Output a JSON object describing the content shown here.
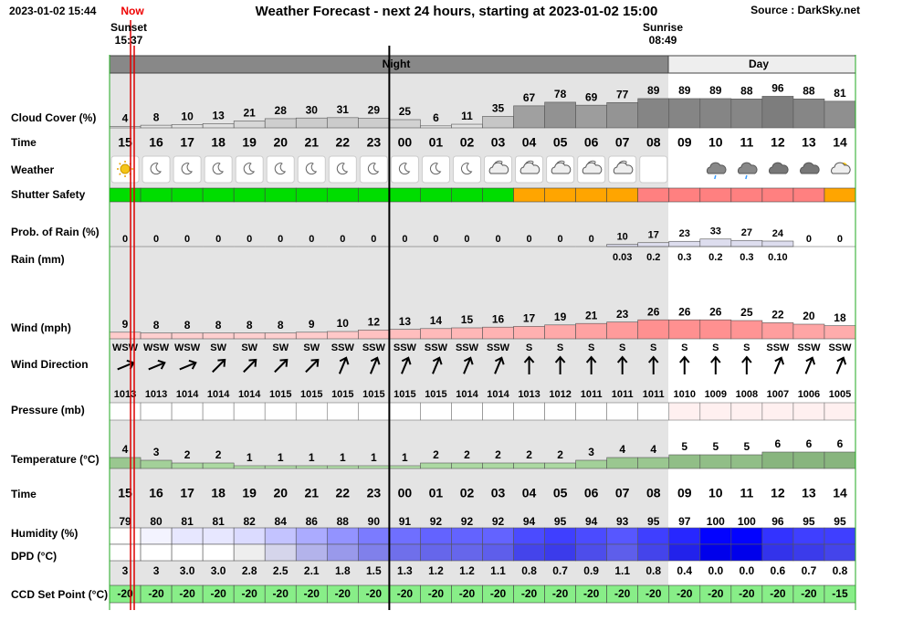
{
  "header": {
    "timestamp": "2023-01-02 15:44",
    "now": "Now",
    "title": "Weather Forecast - next 24 hours, starting at 2023-01-02 15:00",
    "source": "Source : DarkSky.net",
    "sunset_label": "Sunset",
    "sunset_time": "15:37",
    "sunrise_label": "Sunrise",
    "sunrise_time": "08:49",
    "night": "Night",
    "day": "Day"
  },
  "row_labels": {
    "cloud_cover": "Cloud Cover (%)",
    "time": "Time",
    "weather": "Weather",
    "shutter_safety": "Shutter Safety",
    "prob_rain": "Prob. of Rain (%)",
    "rain": "Rain (mm)",
    "wind": "Wind (mph)",
    "wind_direction": "Wind Direction",
    "pressure": "Pressure (mb)",
    "temperature": "Temperature (°C)",
    "time2": "Time",
    "humidity": "Humidity (%)",
    "dpd": "DPD (°C)",
    "ccd": "CCD Set Point (°C)"
  },
  "hours": [
    "15",
    "16",
    "17",
    "18",
    "19",
    "20",
    "21",
    "22",
    "23",
    "00",
    "01",
    "02",
    "03",
    "04",
    "05",
    "06",
    "07",
    "08",
    "09",
    "10",
    "11",
    "12",
    "13",
    "14"
  ],
  "cloud_cover": [
    4,
    8,
    10,
    13,
    21,
    28,
    30,
    31,
    29,
    25,
    6,
    11,
    35,
    67,
    78,
    69,
    77,
    89,
    89,
    89,
    88,
    96,
    88,
    81
  ],
  "prob_rain": [
    0,
    0,
    0,
    0,
    0,
    0,
    0,
    0,
    0,
    0,
    0,
    0,
    0,
    0,
    0,
    0,
    10,
    17,
    23,
    33,
    27,
    24,
    0,
    0
  ],
  "rain": {
    "values": [
      null,
      null,
      null,
      null,
      null,
      null,
      null,
      null,
      null,
      null,
      null,
      null,
      null,
      null,
      null,
      null,
      0.03,
      0.2,
      0.3,
      0.2,
      0.3,
      0.1,
      null,
      null
    ],
    "value_labels": [
      null,
      null,
      null,
      null,
      null,
      null,
      null,
      null,
      null,
      null,
      null,
      null,
      null,
      null,
      null,
      null,
      "0.03",
      "0.2",
      "0.3",
      "0.2",
      "0.3",
      "0.10",
      null,
      null
    ]
  },
  "wind": [
    9,
    8,
    8,
    8,
    8,
    8,
    9,
    10,
    12,
    13,
    14,
    15,
    16,
    17,
    19,
    21,
    23,
    26,
    26,
    26,
    25,
    22,
    20,
    18
  ],
  "wind_direction": [
    "WSW",
    "WSW",
    "WSW",
    "SW",
    "SW",
    "SW",
    "SW",
    "SSW",
    "SSW",
    "SSW",
    "SSW",
    "SSW",
    "SSW",
    "S",
    "S",
    "S",
    "S",
    "S",
    "S",
    "S",
    "S",
    "SSW",
    "SSW",
    "SSW"
  ],
  "pressure": [
    1013,
    1013,
    1014,
    1014,
    1014,
    1015,
    1015,
    1015,
    1015,
    1015,
    1015,
    1014,
    1014,
    1013,
    1012,
    1011,
    1011,
    1011,
    1010,
    1009,
    1008,
    1007,
    1006,
    1005
  ],
  "temperature": [
    4,
    3,
    2,
    2,
    1,
    1,
    1,
    1,
    1,
    1,
    2,
    2,
    2,
    2,
    2,
    3,
    4,
    4,
    5,
    5,
    5,
    6,
    6,
    6
  ],
  "humidity": [
    79,
    80,
    81,
    81,
    82,
    84,
    86,
    88,
    90,
    91,
    92,
    92,
    92,
    94,
    95,
    94,
    93,
    95,
    97,
    100,
    100,
    96,
    95,
    95
  ],
  "dpd": {
    "values": [
      3,
      3,
      3,
      3,
      2.8,
      2.5,
      2.1,
      1.8,
      1.5,
      1.3,
      1.2,
      1.2,
      1.1,
      0.8,
      0.7,
      0.9,
      1.1,
      0.8,
      0.4,
      0,
      0,
      0.6,
      0.7,
      0.8
    ],
    "value_labels": [
      "3",
      "3",
      "3.0",
      "3.0",
      "2.8",
      "2.5",
      "2.1",
      "1.8",
      "1.5",
      "1.3",
      "1.2",
      "1.2",
      "1.1",
      "0.8",
      "0.7",
      "0.9",
      "1.1",
      "0.8",
      "0.4",
      "0.0",
      "0.0",
      "0.6",
      "0.7",
      "0.8"
    ]
  },
  "ccd_set_point": [
    -20,
    -20,
    -20,
    -20,
    -20,
    -20,
    -20,
    -20,
    -20,
    -20,
    -20,
    -20,
    -20,
    -20,
    -20,
    -20,
    -20,
    -20,
    -20,
    -20,
    -20,
    -20,
    -20,
    -15
  ]
}
